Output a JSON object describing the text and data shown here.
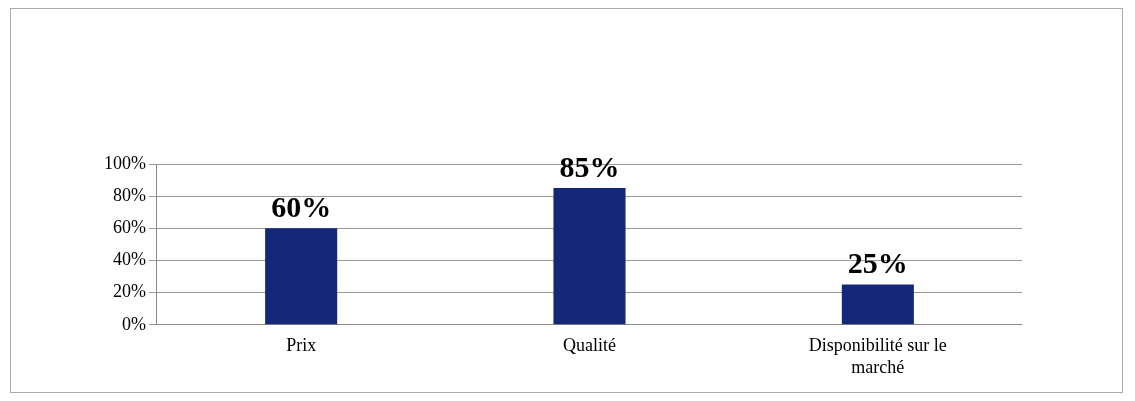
{
  "chart_data": {
    "type": "bar",
    "categories": [
      "Prix",
      "Qualité",
      "Disponibilité sur le marché"
    ],
    "values": [
      60,
      85,
      25
    ],
    "color": "#14287a",
    "ylim": [
      0,
      100
    ],
    "yticks": [
      {
        "value": 0,
        "label": "0%"
      },
      {
        "value": 20,
        "label": "20%"
      },
      {
        "value": 40,
        "label": "40%"
      },
      {
        "value": 60,
        "label": "60%"
      },
      {
        "value": 80,
        "label": "80%"
      },
      {
        "value": 100,
        "label": "100%"
      }
    ],
    "grid": "y",
    "data_labels": true,
    "value_labels": [
      "60%",
      "85%",
      "25%"
    ]
  }
}
